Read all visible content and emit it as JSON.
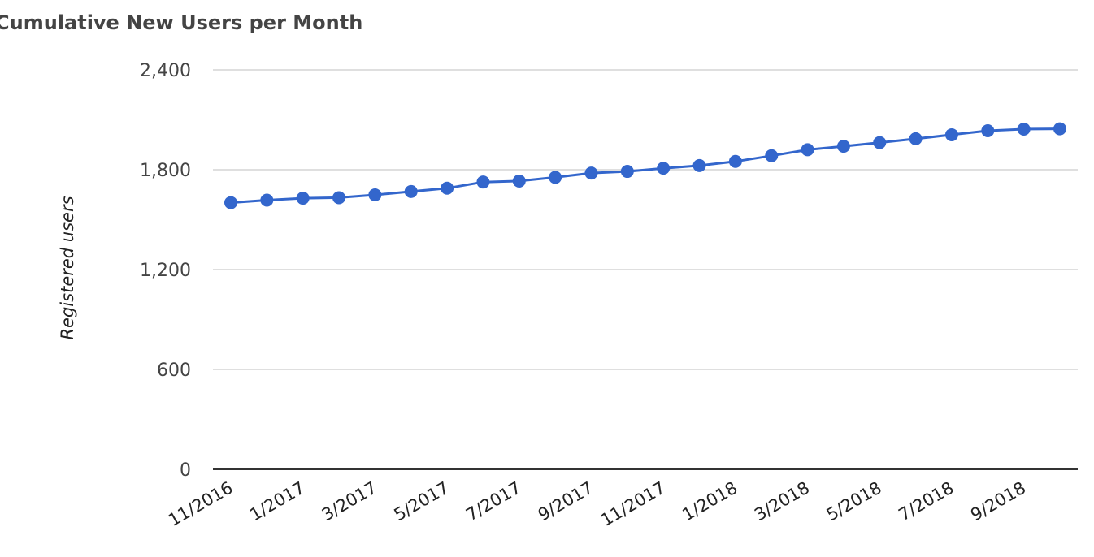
{
  "chart_data": {
    "type": "line",
    "title": "Cumulative New Users per Month",
    "xlabel": "",
    "ylabel": "Registered users",
    "ylim": [
      0,
      2400
    ],
    "yticks": [
      "0",
      "600",
      "1,200",
      "1,800",
      "2,400"
    ],
    "ytick_values": [
      0,
      600,
      1200,
      1800,
      2400
    ],
    "xtick_labels": [
      "11/2016",
      "1/2017",
      "3/2017",
      "5/2017",
      "7/2017",
      "9/2017",
      "11/2017",
      "1/2018",
      "3/2018",
      "5/2018",
      "7/2018",
      "9/2018"
    ],
    "grid": true,
    "legend": "none",
    "series": [
      {
        "color": "#3366cc",
        "x": [
          "11/2016",
          "12/2016",
          "1/2017",
          "2/2017",
          "3/2017",
          "4/2017",
          "5/2017",
          "6/2017",
          "7/2017",
          "8/2017",
          "9/2017",
          "10/2017",
          "11/2017",
          "12/2017",
          "1/2018",
          "2/2018",
          "3/2018",
          "4/2018",
          "5/2018",
          "6/2018",
          "7/2018",
          "8/2018",
          "9/2018",
          "10/2018"
        ],
        "values": [
          1602,
          1617,
          1629,
          1632,
          1649,
          1669,
          1689,
          1726,
          1732,
          1754,
          1780,
          1790,
          1809,
          1825,
          1850,
          1884,
          1920,
          1941,
          1963,
          1986,
          2010,
          2034,
          2044,
          2046
        ]
      }
    ]
  }
}
